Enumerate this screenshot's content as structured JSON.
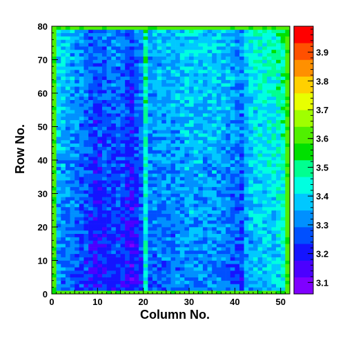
{
  "chart_data": {
    "type": "heatmap",
    "xlabel": "Column No.",
    "ylabel": "Row No.",
    "xlim": [
      0,
      52
    ],
    "ylim": [
      0,
      80
    ],
    "x_bins": 52,
    "y_bins": 80,
    "x_ticks": [
      0,
      10,
      20,
      30,
      40,
      50
    ],
    "y_ticks": [
      0,
      10,
      20,
      30,
      40,
      50,
      60,
      70,
      80
    ],
    "z_range": [
      3.06,
      3.99
    ],
    "z_ticks": [
      3.1,
      3.2,
      3.3,
      3.4,
      3.5,
      3.6,
      3.7,
      3.8,
      3.9
    ],
    "z_tick_labels": [
      "3.1",
      "3.2",
      "3.3",
      "3.4",
      "3.5",
      "3.6",
      "3.7",
      "3.8",
      "3.9"
    ],
    "colormap_colors": [
      "#7f00ff",
      "#4b00ff",
      "#1414ff",
      "#0050ff",
      "#0090ff",
      "#00c8ff",
      "#00ffe0",
      "#00ff90",
      "#00e000",
      "#50f000",
      "#a0ff00",
      "#e8ff00",
      "#ffd000",
      "#ff9000",
      "#ff5000",
      "#ff0000"
    ],
    "column_profile": [
      {
        "x": 0,
        "z": 3.45
      },
      {
        "x": 1,
        "z": 3.36
      },
      {
        "x": 4,
        "z": 3.32
      },
      {
        "x": 7,
        "z": 3.27
      },
      {
        "x": 9,
        "z": 3.22
      },
      {
        "x": 12,
        "z": 3.27
      },
      {
        "x": 15,
        "z": 3.26
      },
      {
        "x": 17,
        "z": 3.2
      },
      {
        "x": 19,
        "z": 3.28
      },
      {
        "x": 20,
        "z": 3.45
      },
      {
        "x": 21,
        "z": 3.32
      },
      {
        "x": 26,
        "z": 3.33
      },
      {
        "x": 30,
        "z": 3.36
      },
      {
        "x": 36,
        "z": 3.35
      },
      {
        "x": 40,
        "z": 3.3
      },
      {
        "x": 41,
        "z": 3.28
      },
      {
        "x": 42,
        "z": 3.36
      },
      {
        "x": 44,
        "z": 3.4
      },
      {
        "x": 48,
        "z": 3.42
      },
      {
        "x": 51,
        "z": 3.48
      }
    ],
    "row_trend_per_bin": 0.0012,
    "cell_variation": 0.07,
    "edge_value": 3.6
  }
}
